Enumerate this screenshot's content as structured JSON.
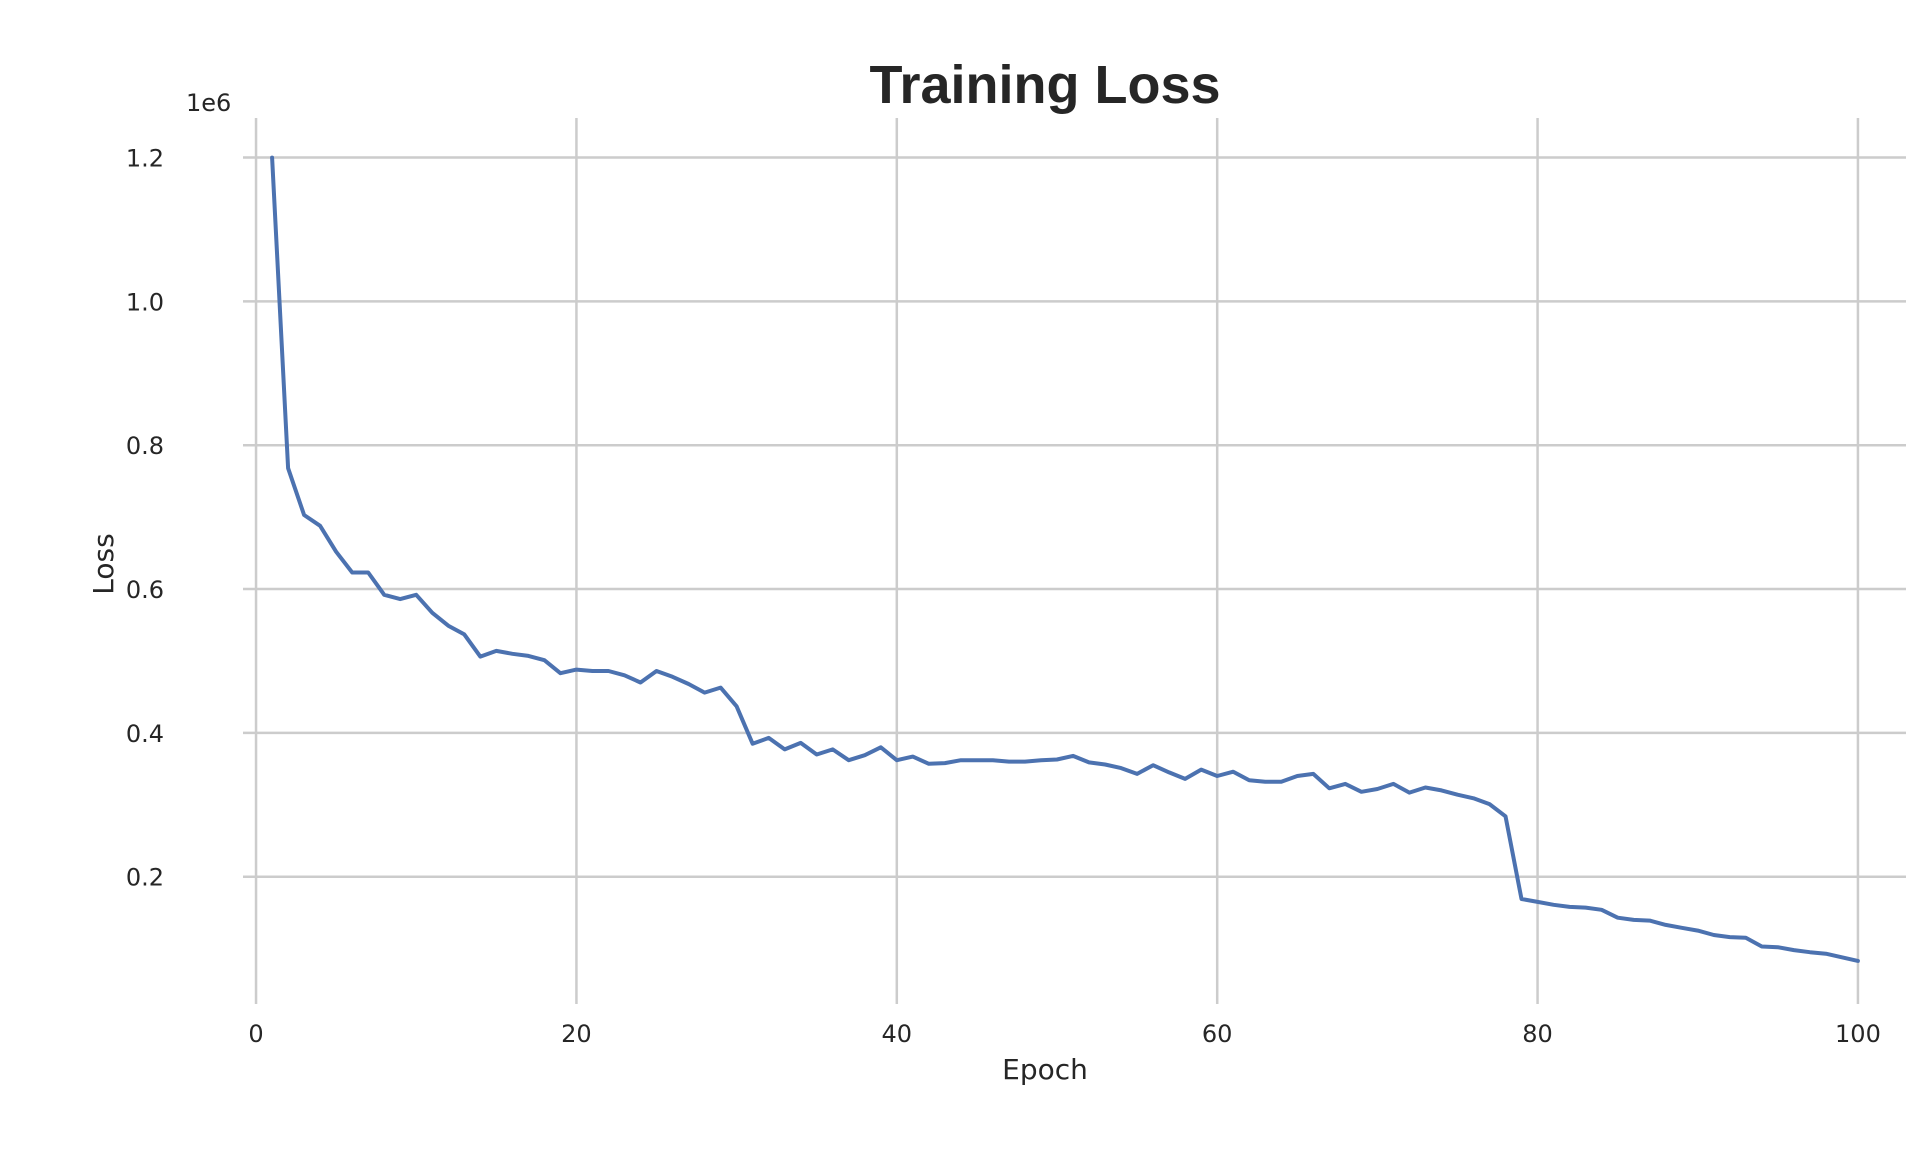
{
  "chart_data": {
    "type": "line",
    "title": "Training Loss",
    "xlabel": "Epoch",
    "ylabel": "Loss",
    "y_offset_label": "1e6",
    "xlim": [
      -2.5,
      103
    ],
    "ylim": [
      0.023,
      1.255
    ],
    "xticks": [
      0,
      20,
      40,
      60,
      80,
      100
    ],
    "yticks": [
      0.2,
      0.4,
      0.6,
      0.8,
      1.0,
      1.2
    ],
    "ytick_labels": [
      "0.2",
      "0.4",
      "0.6",
      "0.8",
      "1.0",
      "1.2"
    ],
    "grid": true,
    "line_color": "#4c72b0",
    "series": [
      {
        "x": [
          1,
          2,
          3,
          4,
          5,
          6,
          7,
          8,
          9,
          10,
          11,
          12,
          13,
          14,
          15,
          16,
          17,
          18,
          19,
          20,
          21,
          22,
          23,
          24,
          25,
          26,
          27,
          28,
          29,
          30,
          31,
          32,
          33,
          34,
          35,
          36,
          37,
          38,
          39,
          40,
          41,
          42,
          43,
          44,
          45,
          46,
          47,
          48,
          49,
          50,
          51,
          52,
          53,
          54,
          55,
          56,
          57,
          58,
          59,
          60,
          61,
          62,
          63,
          64,
          65,
          66,
          67,
          68,
          69,
          70,
          71,
          72,
          73,
          74,
          75,
          76,
          77,
          78,
          79,
          80,
          81,
          82,
          83,
          84,
          85,
          86,
          87,
          88,
          89,
          90,
          91,
          92,
          93,
          94,
          95,
          96,
          97,
          98,
          99,
          100
        ],
        "values": [
          1.2,
          0.768,
          0.703,
          0.688,
          0.652,
          0.623,
          0.623,
          0.592,
          0.586,
          0.592,
          0.567,
          0.549,
          0.537,
          0.506,
          0.514,
          0.51,
          0.507,
          0.501,
          0.483,
          0.488,
          0.486,
          0.486,
          0.48,
          0.47,
          0.486,
          0.478,
          0.468,
          0.456,
          0.463,
          0.437,
          0.385,
          0.393,
          0.377,
          0.386,
          0.37,
          0.377,
          0.362,
          0.369,
          0.38,
          0.362,
          0.367,
          0.357,
          0.358,
          0.362,
          0.362,
          0.362,
          0.36,
          0.36,
          0.362,
          0.363,
          0.368,
          0.359,
          0.356,
          0.351,
          0.343,
          0.355,
          0.345,
          0.336,
          0.349,
          0.34,
          0.346,
          0.334,
          0.332,
          0.332,
          0.34,
          0.343,
          0.323,
          0.329,
          0.318,
          0.322,
          0.329,
          0.317,
          0.324,
          0.32,
          0.314,
          0.309,
          0.301,
          0.284,
          0.169,
          0.165,
          0.161,
          0.158,
          0.157,
          0.154,
          0.143,
          0.14,
          0.139,
          0.133,
          0.129,
          0.125,
          0.119,
          0.116,
          0.115,
          0.103,
          0.102,
          0.098,
          0.095,
          0.093,
          0.088,
          0.083
        ]
      }
    ]
  }
}
